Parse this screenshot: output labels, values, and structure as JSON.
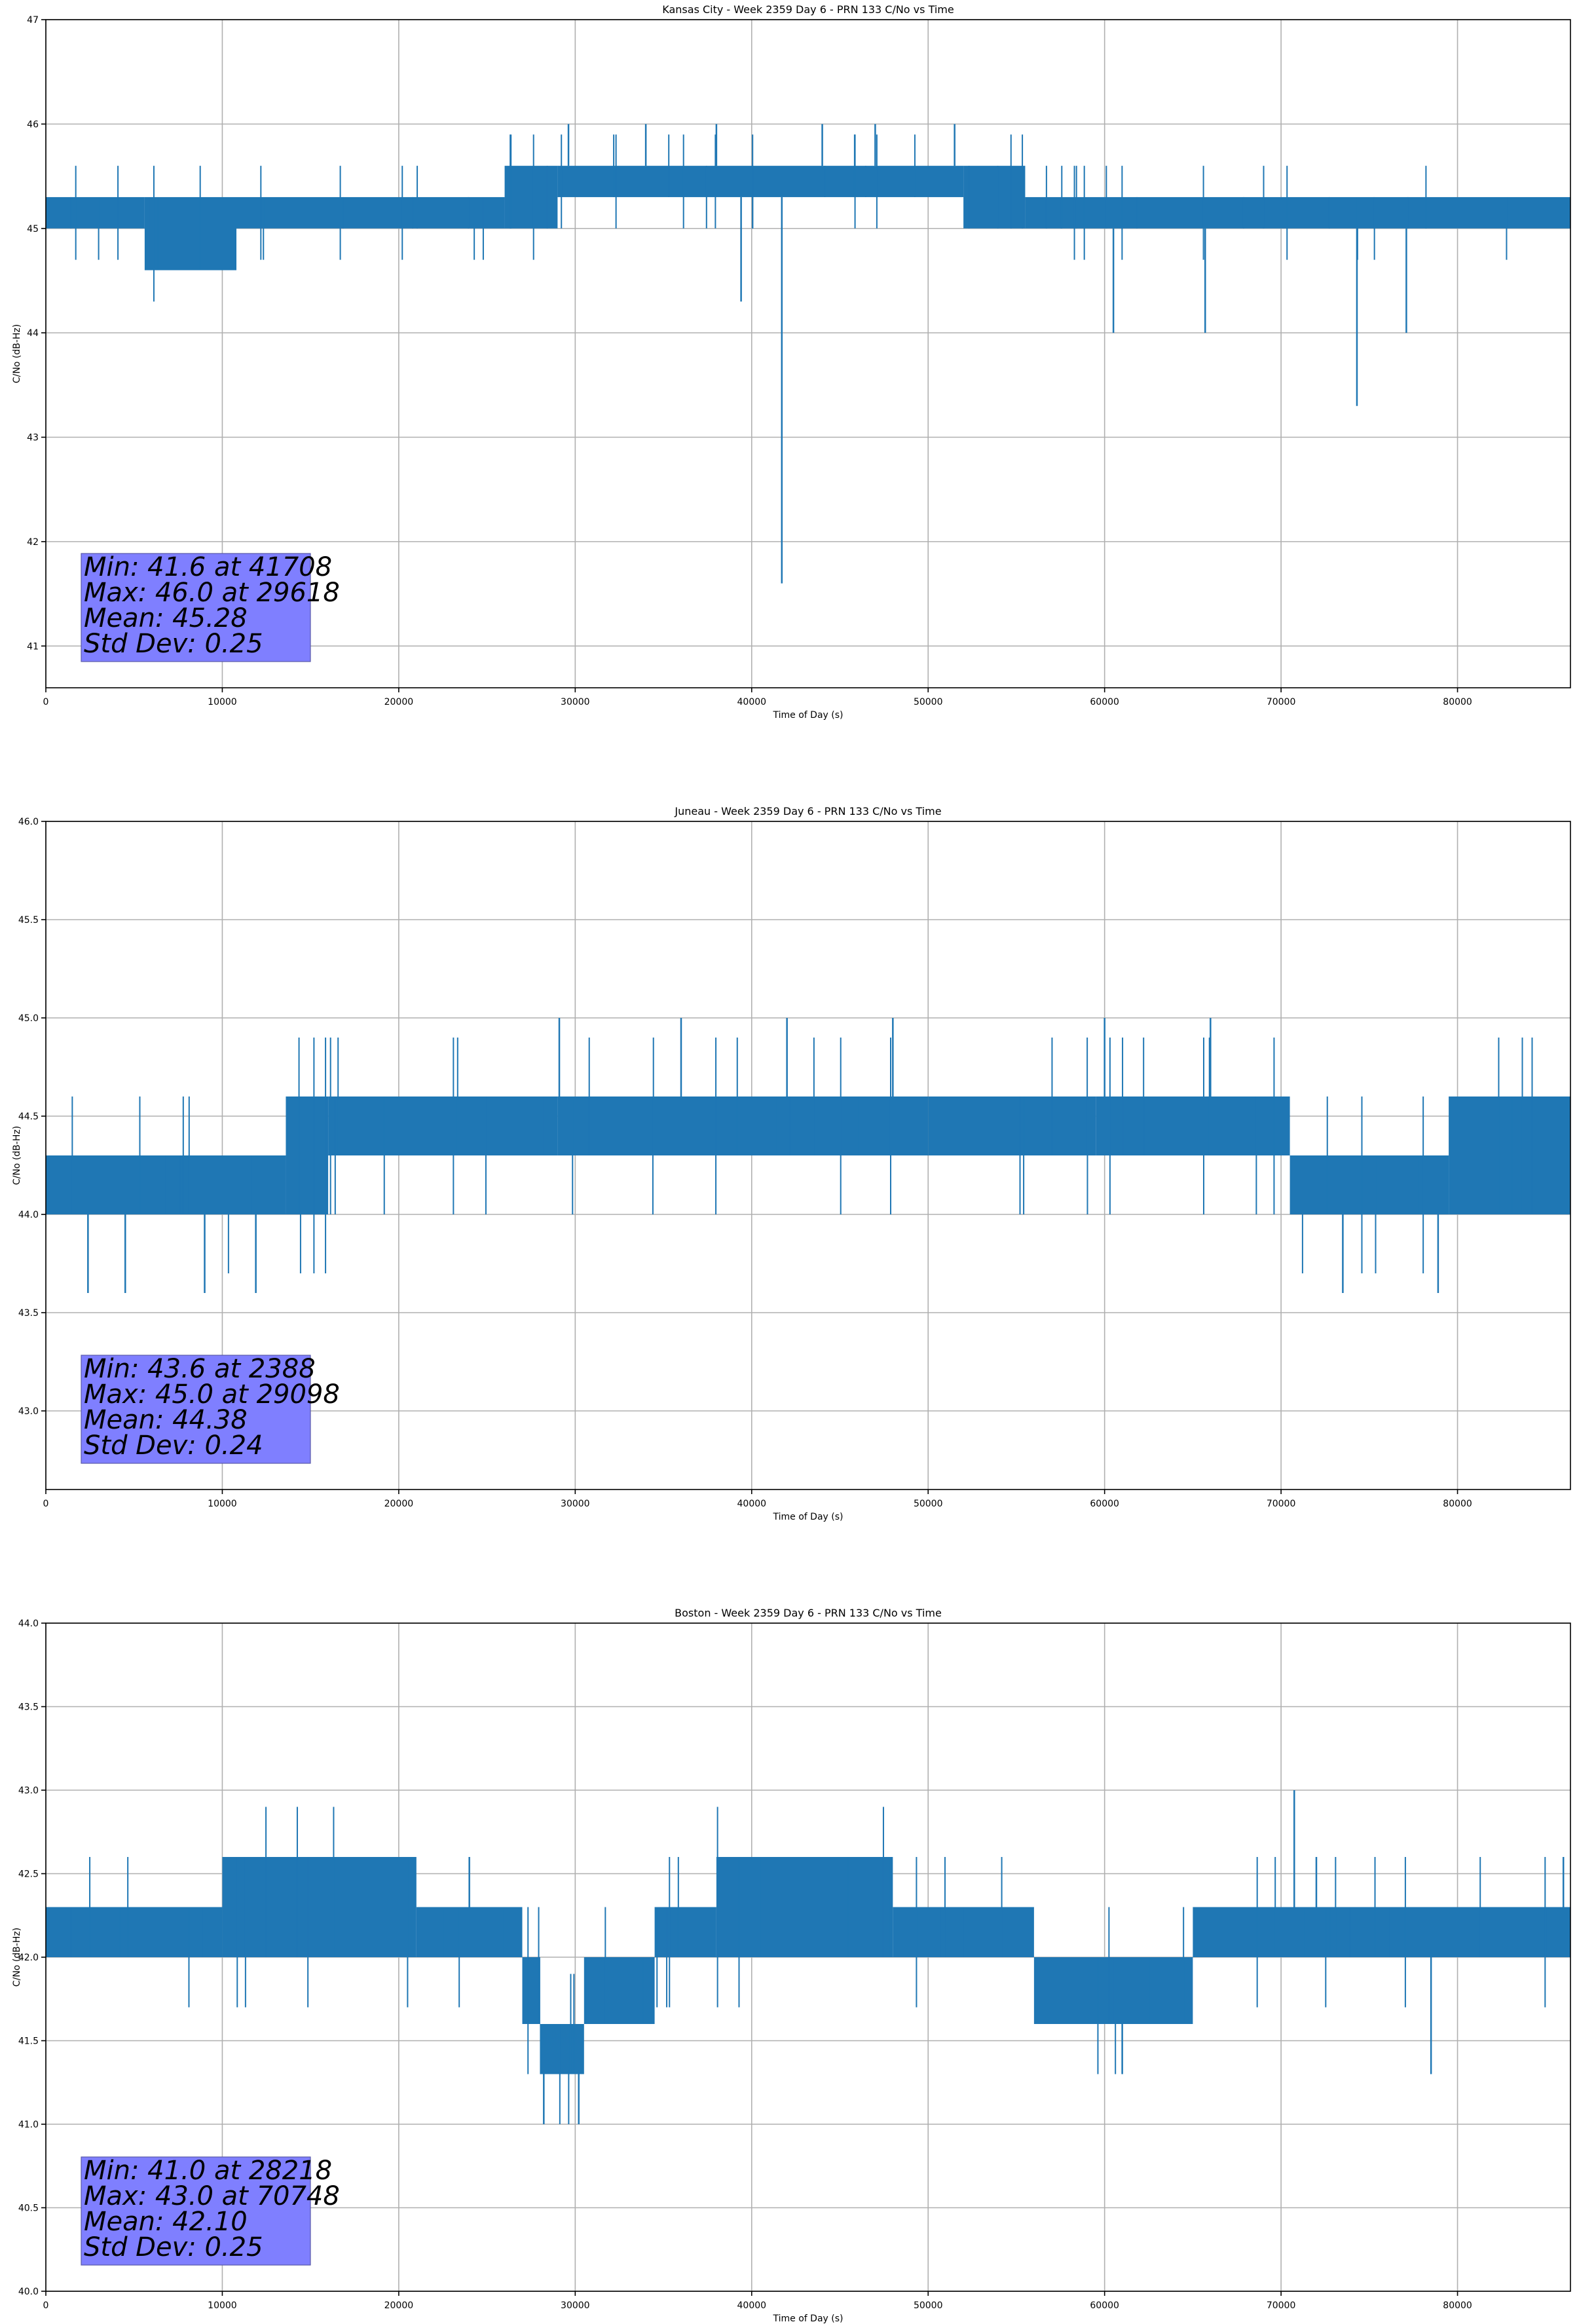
{
  "chart_data": [
    {
      "type": "line",
      "title": "Kansas City - Week 2359 Day 6 - PRN 133 C/No vs Time",
      "xlabel": "Time of Day (s)",
      "ylabel": "C/No (dB-Hz)",
      "xlim": [
        0,
        86400
      ],
      "ylim": [
        40.6,
        47
      ],
      "xticks": [
        0,
        10000,
        20000,
        30000,
        40000,
        50000,
        60000,
        70000,
        80000
      ],
      "yticks": [
        41,
        42,
        43,
        44,
        45,
        46,
        47
      ],
      "ytick_decimals": 0,
      "grid": true,
      "series": [
        {
          "name": "C/No",
          "color": "#1f77b4",
          "bands": [
            {
              "x": [
                0,
                5600
              ],
              "y": [
                45.0,
                45.3
              ]
            },
            {
              "x": [
                5600,
                10800
              ],
              "y": [
                44.6,
                45.3
              ]
            },
            {
              "x": [
                10800,
                26000
              ],
              "y": [
                45.0,
                45.3
              ]
            },
            {
              "x": [
                26000,
                29000
              ],
              "y": [
                45.0,
                45.6
              ]
            },
            {
              "x": [
                29000,
                52000
              ],
              "y": [
                45.3,
                45.6
              ]
            },
            {
              "x": [
                52000,
                55500
              ],
              "y": [
                45.0,
                45.6
              ]
            },
            {
              "x": [
                55500,
                86400
              ],
              "y": [
                45.0,
                45.3
              ]
            }
          ],
          "spikes": [
            {
              "x": 41708,
              "y": 41.6
            },
            {
              "x": 39400,
              "y": 44.3
            },
            {
              "x": 60500,
              "y": 44.0
            },
            {
              "x": 65700,
              "y": 44.0
            },
            {
              "x": 74300,
              "y": 43.3
            },
            {
              "x": 77100,
              "y": 44.0
            },
            {
              "x": 29618,
              "y": 46.0
            },
            {
              "x": 34000,
              "y": 46.0
            },
            {
              "x": 38000,
              "y": 46.0
            },
            {
              "x": 44000,
              "y": 46.0
            },
            {
              "x": 47000,
              "y": 46.0
            },
            {
              "x": 51500,
              "y": 46.0
            }
          ]
        }
      ],
      "stats": {
        "min": "Min: 41.6 at 41708",
        "max": "Max: 46.0 at 29618",
        "mean": "Mean: 45.28",
        "std": "Std Dev: 0.25"
      }
    },
    {
      "type": "line",
      "title": "Juneau - Week 2359 Day 6 - PRN 133 C/No vs Time",
      "xlabel": "Time of Day (s)",
      "ylabel": "C/No (dB-Hz)",
      "xlim": [
        0,
        86400
      ],
      "ylim": [
        42.6,
        46.0
      ],
      "xticks": [
        0,
        10000,
        20000,
        30000,
        40000,
        50000,
        60000,
        70000,
        80000
      ],
      "yticks": [
        43.0,
        43.5,
        44.0,
        44.5,
        45.0,
        45.5,
        46.0
      ],
      "ytick_decimals": 1,
      "grid": true,
      "series": [
        {
          "name": "C/No",
          "color": "#1f77b4",
          "bands": [
            {
              "x": [
                0,
                13600
              ],
              "y": [
                44.0,
                44.3
              ]
            },
            {
              "x": [
                13600,
                16000
              ],
              "y": [
                44.0,
                44.6
              ]
            },
            {
              "x": [
                16000,
                29000
              ],
              "y": [
                44.3,
                44.6
              ]
            },
            {
              "x": [
                29000,
                50000
              ],
              "y": [
                44.3,
                44.6
              ]
            },
            {
              "x": [
                50000,
                59500
              ],
              "y": [
                44.3,
                44.6
              ]
            },
            {
              "x": [
                59500,
                70500
              ],
              "y": [
                44.3,
                44.6
              ]
            },
            {
              "x": [
                70500,
                79500
              ],
              "y": [
                44.0,
                44.3
              ]
            },
            {
              "x": [
                79500,
                86400
              ],
              "y": [
                44.0,
                44.6
              ]
            }
          ],
          "spikes": [
            {
              "x": 2388,
              "y": 43.6
            },
            {
              "x": 4500,
              "y": 43.6
            },
            {
              "x": 9000,
              "y": 43.6
            },
            {
              "x": 11900,
              "y": 43.6
            },
            {
              "x": 73500,
              "y": 43.6
            },
            {
              "x": 78900,
              "y": 43.6
            },
            {
              "x": 29098,
              "y": 45.0
            },
            {
              "x": 36000,
              "y": 45.0
            },
            {
              "x": 42000,
              "y": 45.0
            },
            {
              "x": 48000,
              "y": 45.0
            },
            {
              "x": 60000,
              "y": 45.0
            },
            {
              "x": 66000,
              "y": 45.0
            }
          ]
        }
      ],
      "stats": {
        "min": "Min: 43.6 at 2388",
        "max": "Max: 45.0 at 29098",
        "mean": "Mean: 44.38",
        "std": "Std Dev: 0.24"
      }
    },
    {
      "type": "line",
      "title": "Boston - Week 2359 Day 6 - PRN 133 C/No vs Time",
      "xlabel": "Time of Day (s)",
      "ylabel": "C/No (dB-Hz)",
      "xlim": [
        0,
        86400
      ],
      "ylim": [
        40.0,
        44.0
      ],
      "xticks": [
        0,
        10000,
        20000,
        30000,
        40000,
        50000,
        60000,
        70000,
        80000
      ],
      "yticks": [
        40.0,
        40.5,
        41.0,
        41.5,
        42.0,
        42.5,
        43.0,
        43.5,
        44.0
      ],
      "ytick_decimals": 1,
      "grid": true,
      "series": [
        {
          "name": "C/No",
          "color": "#1f77b4",
          "bands": [
            {
              "x": [
                0,
                10000
              ],
              "y": [
                42.0,
                42.3
              ]
            },
            {
              "x": [
                10000,
                21000
              ],
              "y": [
                42.0,
                42.6
              ]
            },
            {
              "x": [
                21000,
                27000
              ],
              "y": [
                42.0,
                42.3
              ]
            },
            {
              "x": [
                27000,
                28000
              ],
              "y": [
                41.6,
                42.0
              ]
            },
            {
              "x": [
                28000,
                30500
              ],
              "y": [
                41.3,
                41.6
              ]
            },
            {
              "x": [
                30500,
                34500
              ],
              "y": [
                41.6,
                42.0
              ]
            },
            {
              "x": [
                34500,
                38000
              ],
              "y": [
                42.0,
                42.3
              ]
            },
            {
              "x": [
                38000,
                48000
              ],
              "y": [
                42.0,
                42.6
              ]
            },
            {
              "x": [
                48000,
                56000
              ],
              "y": [
                42.0,
                42.3
              ]
            },
            {
              "x": [
                56000,
                65000
              ],
              "y": [
                41.6,
                42.0
              ]
            },
            {
              "x": [
                65000,
                86400
              ],
              "y": [
                42.0,
                42.3
              ]
            }
          ],
          "spikes": [
            {
              "x": 28218,
              "y": 41.0
            },
            {
              "x": 30200,
              "y": 41.0
            },
            {
              "x": 61000,
              "y": 41.3
            },
            {
              "x": 78500,
              "y": 41.3
            },
            {
              "x": 70748,
              "y": 43.0
            },
            {
              "x": 24000,
              "y": 42.6
            },
            {
              "x": 72000,
              "y": 42.6
            },
            {
              "x": 86000,
              "y": 42.6
            }
          ]
        }
      ],
      "stats": {
        "min": "Min: 41.0 at 28218",
        "max": "Max: 43.0 at 70748",
        "mean": "Mean: 42.10",
        "std": "Std Dev: 0.25"
      }
    }
  ]
}
